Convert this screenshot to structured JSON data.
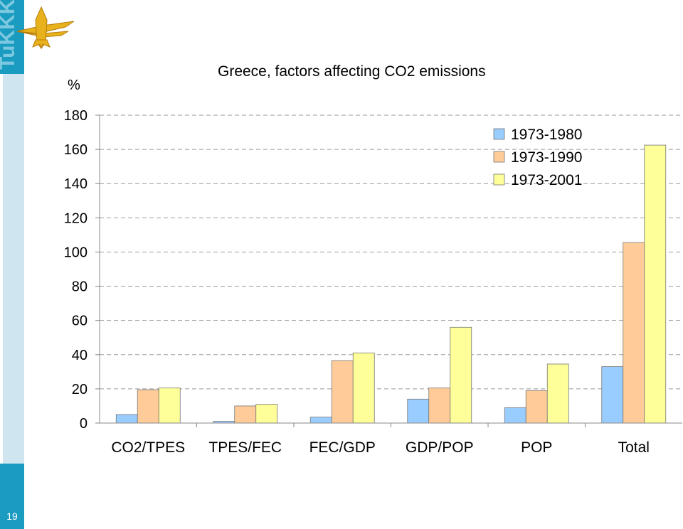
{
  "slide": {
    "page_number": "19"
  },
  "logo": {
    "text": "TuKKK",
    "colors": {
      "panel": "#1a9bc0",
      "emblem": "#e8b21c",
      "emblem_dark": "#b67d0b"
    }
  },
  "colors": {
    "side_dark": "#1a9bc0",
    "side_light": "#cfe6f1"
  },
  "chart_data": {
    "type": "bar",
    "title": "Greece, factors affecting CO2 emissions",
    "ylabel": "%",
    "xlabel": "",
    "ylim": [
      0,
      180
    ],
    "yticks": [
      0,
      20,
      40,
      60,
      80,
      100,
      120,
      140,
      160,
      180
    ],
    "grid": true,
    "legend_position": "top-right",
    "categories": [
      "CO2/TPES",
      "TPES/FEC",
      "FEC/GDP",
      "GDP/POP",
      "POP",
      "Total"
    ],
    "series": [
      {
        "name": "1973-1980",
        "color": "#99ccff",
        "values": [
          5,
          1,
          3.5,
          14,
          9,
          33
        ]
      },
      {
        "name": "1973-1990",
        "color": "#ffcc99",
        "values": [
          19.5,
          10,
          36.5,
          20.5,
          19,
          105.5
        ]
      },
      {
        "name": "1973-2001",
        "color": "#ffff99",
        "values": [
          20.5,
          11,
          41,
          56,
          34.5,
          162.5
        ]
      }
    ]
  }
}
